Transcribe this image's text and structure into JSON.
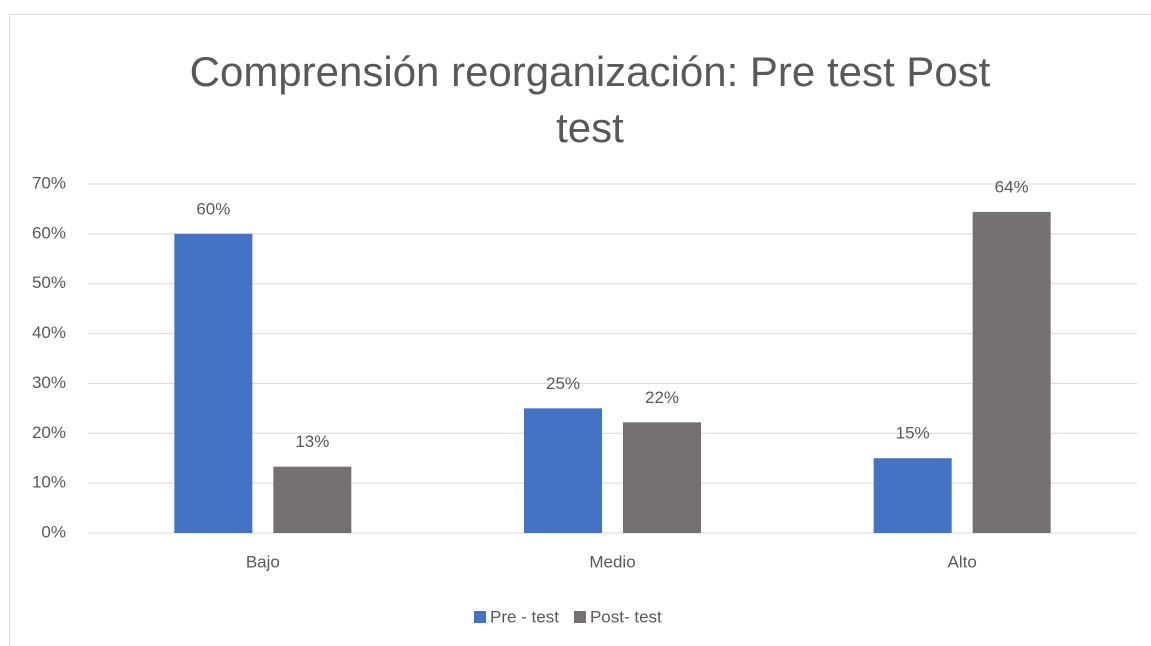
{
  "chart_data": {
    "type": "bar",
    "title": "Comprensión reorganización: Pre test  Post test",
    "categories": [
      "Bajo",
      "Medio",
      "Alto"
    ],
    "series": [
      {
        "name": "Pre - test",
        "color": "#4472c4",
        "values": [
          60,
          25,
          15
        ],
        "value_labels": [
          "60%",
          "25%",
          "15%"
        ]
      },
      {
        "name": "Post- test",
        "color": "#767171",
        "values": [
          13.3,
          22.2,
          64.4
        ],
        "value_labels": [
          "13%",
          "22%",
          "64%"
        ]
      }
    ],
    "ylim": [
      0,
      70
    ],
    "yticks": [
      {
        "value": 0,
        "label": "0%"
      },
      {
        "value": 10,
        "label": "10%"
      },
      {
        "value": 20,
        "label": "20%"
      },
      {
        "value": 30,
        "label": "30%"
      },
      {
        "value": 40,
        "label": "40%"
      },
      {
        "value": 50,
        "label": "50%"
      },
      {
        "value": 60,
        "label": "60%"
      },
      {
        "value": 70,
        "label": "70%"
      }
    ],
    "grid": true,
    "legend": "bottom"
  }
}
